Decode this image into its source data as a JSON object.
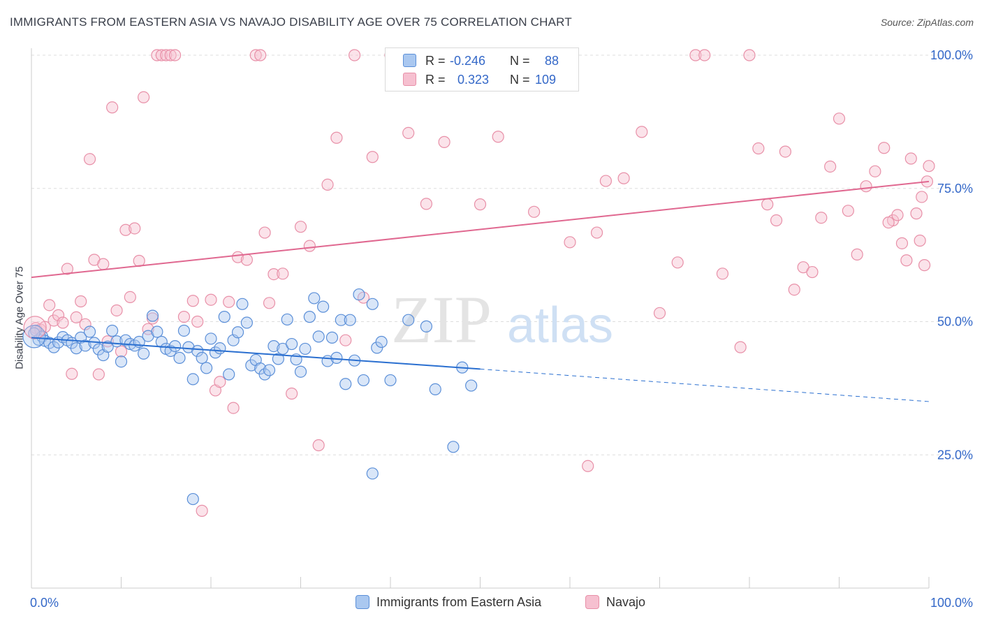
{
  "title": "IMMIGRANTS FROM EASTERN ASIA VS NAVAJO DISABILITY AGE OVER 75 CORRELATION CHART",
  "source": "Source: ZipAtlas.com",
  "watermark": {
    "zip": "ZIP",
    "atlas": "atlas"
  },
  "colors": {
    "blue_fill": "#aac8f0",
    "blue_stroke": "#5b8fd8",
    "blue_line": "#2a6fd0",
    "pink_fill": "#f6c0d0",
    "pink_stroke": "#e890a8",
    "pink_line": "#e06890",
    "tick_label": "#3468c8",
    "grid": "#dddddd"
  },
  "legend": {
    "series1": {
      "r_label": "R =",
      "r_value": "-0.246",
      "n_label": "N =",
      "n_value": "88"
    },
    "series2": {
      "r_label": "R =",
      "r_value": "0.323",
      "n_label": "N =",
      "n_value": "109"
    }
  },
  "chart_data": {
    "type": "scatter",
    "title": "IMMIGRANTS FROM EASTERN ASIA VS NAVAJO DISABILITY AGE OVER 75 CORRELATION CHART",
    "xlabel": "",
    "ylabel": "Disability Age Over 75",
    "xlim": [
      0,
      100
    ],
    "ylim": [
      0,
      100
    ],
    "x_tick_labels": [
      "0.0%",
      "100.0%"
    ],
    "y_tick_labels": [
      "25.0%",
      "50.0%",
      "75.0%",
      "100.0%"
    ],
    "y_ticks": [
      25,
      50,
      75,
      100
    ],
    "grid": "horizontal dashed",
    "legend_position": "top-center",
    "series": [
      {
        "name": "Immigrants from Eastern Asia",
        "color": "#5b8fd8",
        "trend": {
          "x": [
            0,
            50
          ],
          "y": [
            47.0,
            41.1
          ],
          "dashed_to_x": 100,
          "dashed_to_y": 35.0
        },
        "points": [
          [
            0.5,
            48.3
          ],
          [
            0.8,
            46.6
          ],
          [
            1.2,
            47.2
          ],
          [
            1.5,
            46.4
          ],
          [
            2.0,
            46.0
          ],
          [
            2.5,
            45.2
          ],
          [
            3.0,
            46.1
          ],
          [
            3.5,
            47.1
          ],
          [
            4.0,
            46.5
          ],
          [
            4.5,
            46.0
          ],
          [
            5.0,
            45.0
          ],
          [
            5.5,
            47.0
          ],
          [
            6.0,
            45.5
          ],
          [
            6.5,
            48.1
          ],
          [
            7.0,
            46.0
          ],
          [
            7.5,
            44.8
          ],
          [
            8.0,
            43.7
          ],
          [
            8.5,
            45.3
          ],
          [
            9.0,
            48.3
          ],
          [
            9.5,
            46.3
          ],
          [
            10.0,
            42.5
          ],
          [
            10.5,
            46.5
          ],
          [
            11.0,
            45.8
          ],
          [
            11.5,
            45.5
          ],
          [
            12.0,
            46.2
          ],
          [
            12.5,
            44.0
          ],
          [
            13.0,
            47.3
          ],
          [
            13.5,
            51.1
          ],
          [
            14.0,
            48.1
          ],
          [
            14.5,
            46.2
          ],
          [
            15.0,
            44.9
          ],
          [
            15.5,
            44.5
          ],
          [
            16.0,
            45.4
          ],
          [
            16.5,
            43.2
          ],
          [
            17.0,
            48.3
          ],
          [
            17.5,
            45.2
          ],
          [
            18.0,
            39.2
          ],
          [
            18.5,
            44.5
          ],
          [
            19.0,
            43.2
          ],
          [
            19.5,
            41.3
          ],
          [
            20.0,
            46.8
          ],
          [
            20.5,
            44.2
          ],
          [
            21.0,
            45.0
          ],
          [
            21.5,
            50.9
          ],
          [
            22.0,
            40.1
          ],
          [
            22.5,
            46.5
          ],
          [
            23.0,
            48.0
          ],
          [
            23.5,
            53.3
          ],
          [
            24.0,
            49.8
          ],
          [
            24.5,
            41.8
          ],
          [
            25.0,
            42.8
          ],
          [
            25.5,
            41.2
          ],
          [
            26.0,
            40.1
          ],
          [
            26.5,
            40.9
          ],
          [
            27.0,
            45.4
          ],
          [
            27.5,
            43.0
          ],
          [
            28.0,
            44.9
          ],
          [
            28.5,
            50.4
          ],
          [
            29.0,
            45.8
          ],
          [
            29.5,
            42.9
          ],
          [
            30.0,
            40.6
          ],
          [
            30.5,
            44.9
          ],
          [
            31.0,
            50.9
          ],
          [
            31.5,
            54.4
          ],
          [
            32.0,
            47.2
          ],
          [
            32.5,
            52.8
          ],
          [
            33.0,
            42.6
          ],
          [
            33.5,
            47.0
          ],
          [
            34.0,
            43.2
          ],
          [
            34.5,
            50.3
          ],
          [
            35.0,
            38.3
          ],
          [
            35.5,
            50.3
          ],
          [
            36.0,
            42.7
          ],
          [
            36.5,
            55.1
          ],
          [
            37.0,
            39.0
          ],
          [
            38.0,
            53.3
          ],
          [
            38.5,
            45.1
          ],
          [
            39.0,
            46.2
          ],
          [
            40.0,
            39.0
          ],
          [
            42.0,
            50.3
          ],
          [
            44.0,
            49.1
          ],
          [
            45.0,
            37.3
          ],
          [
            47.0,
            26.5
          ],
          [
            48.0,
            41.4
          ],
          [
            49.0,
            38.0
          ],
          [
            18.0,
            16.7
          ],
          [
            38.0,
            21.5
          ],
          [
            0.3,
            47.8
          ]
        ]
      },
      {
        "name": "Navajo",
        "color": "#e890a8",
        "trend": {
          "x": [
            0,
            100
          ],
          "y": [
            58.3,
            76.3
          ]
        },
        "points": [
          [
            0.5,
            48.8
          ],
          [
            1.0,
            48.5
          ],
          [
            1.5,
            49.0
          ],
          [
            2.0,
            53.1
          ],
          [
            2.5,
            50.2
          ],
          [
            3.0,
            51.2
          ],
          [
            3.5,
            49.8
          ],
          [
            4.0,
            59.9
          ],
          [
            4.5,
            40.2
          ],
          [
            5.0,
            50.8
          ],
          [
            5.5,
            53.8
          ],
          [
            6.0,
            49.5
          ],
          [
            6.5,
            80.5
          ],
          [
            7.0,
            61.6
          ],
          [
            7.5,
            40.1
          ],
          [
            8.0,
            60.8
          ],
          [
            8.5,
            46.3
          ],
          [
            9.0,
            90.2
          ],
          [
            9.5,
            52.1
          ],
          [
            10.0,
            44.4
          ],
          [
            10.5,
            67.2
          ],
          [
            11.0,
            54.6
          ],
          [
            11.5,
            67.5
          ],
          [
            12.0,
            61.4
          ],
          [
            12.5,
            92.1
          ],
          [
            13.0,
            48.6
          ],
          [
            13.5,
            50.6
          ],
          [
            14.0,
            100.0
          ],
          [
            14.5,
            100.0
          ],
          [
            15.0,
            100.0
          ],
          [
            15.5,
            100.0
          ],
          [
            16.0,
            100.0
          ],
          [
            17.0,
            50.9
          ],
          [
            18.0,
            53.9
          ],
          [
            18.5,
            50.0
          ],
          [
            19.0,
            14.5
          ],
          [
            20.0,
            54.1
          ],
          [
            20.5,
            37.1
          ],
          [
            21.0,
            38.7
          ],
          [
            22.0,
            53.7
          ],
          [
            22.5,
            33.8
          ],
          [
            23.0,
            62.1
          ],
          [
            24.0,
            61.6
          ],
          [
            25.0,
            100.0
          ],
          [
            25.5,
            100.0
          ],
          [
            26.0,
            66.7
          ],
          [
            26.5,
            53.5
          ],
          [
            27.0,
            58.9
          ],
          [
            28.0,
            59.0
          ],
          [
            29.0,
            36.5
          ],
          [
            30.0,
            67.8
          ],
          [
            31.0,
            64.2
          ],
          [
            32.0,
            26.8
          ],
          [
            33.0,
            75.7
          ],
          [
            34.0,
            84.5
          ],
          [
            35.0,
            46.5
          ],
          [
            36.0,
            100.0
          ],
          [
            37.0,
            54.5
          ],
          [
            38.0,
            80.9
          ],
          [
            40.0,
            100.0
          ],
          [
            42.0,
            85.4
          ],
          [
            44.0,
            72.1
          ],
          [
            46.0,
            83.7
          ],
          [
            48.0,
            100.0
          ],
          [
            50.0,
            72.0
          ],
          [
            52.0,
            84.7
          ],
          [
            54.0,
            100.0
          ],
          [
            56.0,
            70.6
          ],
          [
            58.0,
            100.0
          ],
          [
            60.0,
            64.9
          ],
          [
            62.0,
            22.9
          ],
          [
            63.0,
            66.7
          ],
          [
            64.0,
            76.4
          ],
          [
            66.0,
            76.9
          ],
          [
            68.0,
            85.6
          ],
          [
            70.0,
            51.6
          ],
          [
            72.0,
            61.1
          ],
          [
            74.0,
            100.0
          ],
          [
            75.0,
            100.0
          ],
          [
            77.0,
            59.0
          ],
          [
            79.0,
            45.2
          ],
          [
            80.0,
            100.0
          ],
          [
            81.0,
            82.5
          ],
          [
            82.0,
            72.0
          ],
          [
            83.0,
            69.0
          ],
          [
            84.0,
            81.9
          ],
          [
            85.0,
            56.0
          ],
          [
            86.0,
            60.2
          ],
          [
            87.0,
            59.3
          ],
          [
            88.0,
            69.5
          ],
          [
            89.0,
            79.1
          ],
          [
            90.0,
            88.1
          ],
          [
            91.0,
            70.8
          ],
          [
            92.0,
            62.6
          ],
          [
            93.0,
            75.4
          ],
          [
            94.0,
            78.2
          ],
          [
            95.0,
            82.6
          ],
          [
            96.0,
            69.0
          ],
          [
            97.0,
            64.7
          ],
          [
            98.0,
            80.6
          ],
          [
            99.0,
            65.2
          ],
          [
            99.5,
            60.6
          ],
          [
            100.0,
            79.2
          ],
          [
            99.8,
            76.3
          ],
          [
            99.2,
            73.4
          ],
          [
            98.6,
            70.3
          ],
          [
            97.5,
            61.5
          ],
          [
            96.5,
            70.0
          ],
          [
            95.5,
            68.6
          ]
        ]
      }
    ],
    "big_markers": [
      {
        "series": 0,
        "point": [
          0.3,
          47.2
        ]
      },
      {
        "series": 1,
        "point": [
          0.4,
          48.9
        ]
      }
    ]
  }
}
